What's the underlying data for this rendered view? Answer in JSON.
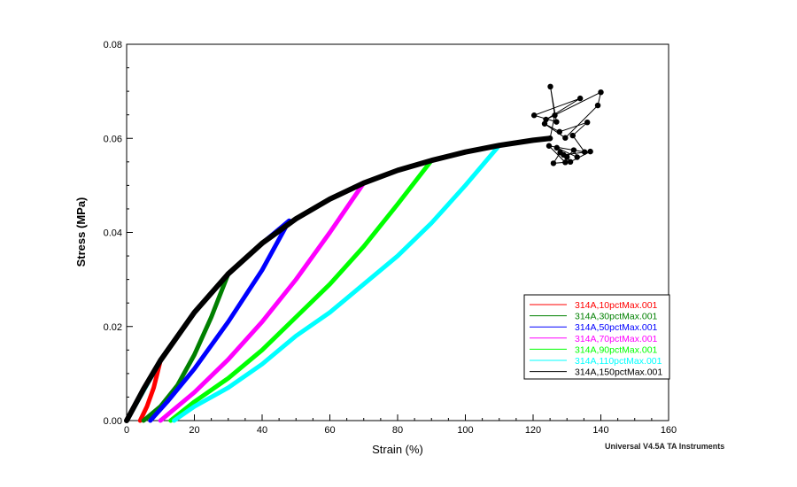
{
  "chart_data": {
    "type": "line",
    "title": "",
    "xlabel": "Strain (%)",
    "ylabel": "Stress (MPa)",
    "xlim": [
      0,
      160
    ],
    "ylim": [
      0,
      0.08
    ],
    "xticks": [
      0,
      20,
      40,
      60,
      80,
      100,
      120,
      140,
      160
    ],
    "yticks": [
      "0.00",
      "0.02",
      "0.04",
      "0.06",
      "0.08"
    ],
    "legend_position": "bottom-right",
    "footer": "Universal V4.5A TA Instruments",
    "series": [
      {
        "name": "314A,10pctMax.001",
        "color": "#ff0000",
        "points": [
          [
            0,
            0
          ],
          [
            5,
            0.0067
          ],
          [
            10,
            0.0128
          ],
          [
            8,
            0.007
          ],
          [
            6,
            0.003
          ],
          [
            4,
            0
          ]
        ]
      },
      {
        "name": "314A,30pctMax.001",
        "color": "#008000",
        "points": [
          [
            0,
            0
          ],
          [
            5,
            0.0067
          ],
          [
            10,
            0.0128
          ],
          [
            20,
            0.023
          ],
          [
            30,
            0.0312
          ],
          [
            25,
            0.022
          ],
          [
            20,
            0.014
          ],
          [
            15,
            0.0075
          ],
          [
            10,
            0.003
          ],
          [
            5,
            0
          ]
        ]
      },
      {
        "name": "314A,50pctMax.001",
        "color": "#0000ff",
        "points": [
          [
            0,
            0
          ],
          [
            10,
            0.0128
          ],
          [
            20,
            0.023
          ],
          [
            30,
            0.0312
          ],
          [
            40,
            0.0377
          ],
          [
            48,
            0.0425
          ],
          [
            40,
            0.032
          ],
          [
            30,
            0.021
          ],
          [
            20,
            0.011
          ],
          [
            12,
            0.004
          ],
          [
            7,
            0
          ]
        ]
      },
      {
        "name": "314A,70pctMax.001",
        "color": "#ff00ff",
        "points": [
          [
            0,
            0
          ],
          [
            10,
            0.0128
          ],
          [
            20,
            0.023
          ],
          [
            30,
            0.0312
          ],
          [
            40,
            0.0377
          ],
          [
            50,
            0.0429
          ],
          [
            60,
            0.0471
          ],
          [
            70,
            0.0505
          ],
          [
            60,
            0.04
          ],
          [
            50,
            0.03
          ],
          [
            40,
            0.021
          ],
          [
            30,
            0.013
          ],
          [
            20,
            0.006
          ],
          [
            10,
            0
          ]
        ]
      },
      {
        "name": "314A,90pctMax.001",
        "color": "#00ff00",
        "points": [
          [
            0,
            0
          ],
          [
            10,
            0.0128
          ],
          [
            20,
            0.023
          ],
          [
            30,
            0.0312
          ],
          [
            40,
            0.0377
          ],
          [
            50,
            0.0429
          ],
          [
            60,
            0.0471
          ],
          [
            70,
            0.0505
          ],
          [
            80,
            0.0532
          ],
          [
            90,
            0.0553
          ],
          [
            80,
            0.046
          ],
          [
            70,
            0.037
          ],
          [
            60,
            0.029
          ],
          [
            50,
            0.022
          ],
          [
            40,
            0.015
          ],
          [
            30,
            0.009
          ],
          [
            20,
            0.004
          ],
          [
            13,
            0
          ]
        ]
      },
      {
        "name": "314A,110pctMax.001",
        "color": "#00ffff",
        "points": [
          [
            0,
            0
          ],
          [
            10,
            0.0128
          ],
          [
            20,
            0.023
          ],
          [
            30,
            0.0312
          ],
          [
            40,
            0.0377
          ],
          [
            50,
            0.0429
          ],
          [
            60,
            0.0471
          ],
          [
            70,
            0.0505
          ],
          [
            80,
            0.0532
          ],
          [
            90,
            0.0553
          ],
          [
            100,
            0.0571
          ],
          [
            110,
            0.0585
          ],
          [
            100,
            0.05
          ],
          [
            90,
            0.042
          ],
          [
            80,
            0.035
          ],
          [
            70,
            0.029
          ],
          [
            60,
            0.023
          ],
          [
            50,
            0.018
          ],
          [
            40,
            0.012
          ],
          [
            30,
            0.007
          ],
          [
            20,
            0.003
          ],
          [
            14,
            0
          ]
        ]
      },
      {
        "name": "314A,150pctMax.001",
        "color": "#000000",
        "points": [
          [
            0,
            0
          ],
          [
            5,
            0.0067
          ],
          [
            10,
            0.0128
          ],
          [
            20,
            0.023
          ],
          [
            30,
            0.0312
          ],
          [
            40,
            0.0377
          ],
          [
            50,
            0.0429
          ],
          [
            60,
            0.0471
          ],
          [
            70,
            0.0505
          ],
          [
            80,
            0.0532
          ],
          [
            90,
            0.0553
          ],
          [
            100,
            0.0571
          ],
          [
            110,
            0.0585
          ],
          [
            120,
            0.0596
          ],
          [
            125,
            0.06
          ]
        ],
        "scatter": [
          [
            125,
            0.06
          ],
          [
            126.4,
            0.0649
          ],
          [
            125.1,
            0.071
          ],
          [
            126.9,
            0.0635
          ],
          [
            120.3,
            0.0649
          ],
          [
            133.9,
            0.0685
          ],
          [
            123.8,
            0.064
          ],
          [
            140.0,
            0.0698
          ],
          [
            139.1,
            0.067
          ],
          [
            129.5,
            0.0601
          ],
          [
            123.4,
            0.0631
          ],
          [
            127.8,
            0.0614
          ],
          [
            136.0,
            0.0634
          ],
          [
            131.7,
            0.0606
          ],
          [
            135.2,
            0.0571
          ],
          [
            124.7,
            0.0584
          ],
          [
            129.5,
            0.0549
          ],
          [
            126.0,
            0.0547
          ],
          [
            128,
            0.057
          ],
          [
            130,
            0.056
          ],
          [
            132,
            0.0575
          ],
          [
            133,
            0.056
          ],
          [
            127,
            0.058
          ],
          [
            131,
            0.055
          ],
          [
            136.9,
            0.0572
          ],
          [
            129,
            0.0565
          ]
        ]
      }
    ]
  }
}
